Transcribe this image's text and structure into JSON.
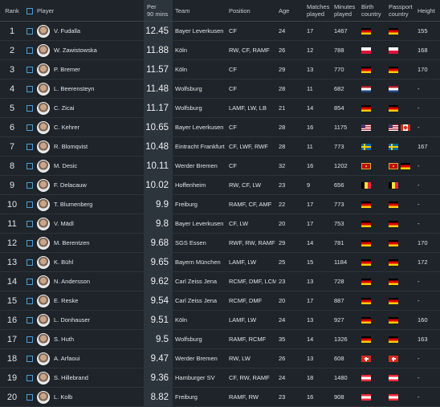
{
  "headers": {
    "rank": "Rank",
    "player": "Player",
    "per90_line1": "Per",
    "per90_line2": "90 mins",
    "team": "Team",
    "position": "Position",
    "age": "Age",
    "matches_line1": "Matches",
    "matches_line2": "played",
    "minutes_line1": "Minutes",
    "minutes_line2": "played",
    "birth_line1": "Birth",
    "birth_line2": "country",
    "passport_line1": "Passport",
    "passport_line2": "country",
    "height": "Height"
  },
  "rows": [
    {
      "rank": "1",
      "player": "V. Fudalla",
      "per90": "12.45",
      "team": "Bayer Leverkusen",
      "position": "CF",
      "age": "24",
      "matches": "17",
      "minutes": "1467",
      "birth": [
        "de"
      ],
      "passport": [
        "de"
      ],
      "height": "155"
    },
    {
      "rank": "2",
      "player": "W. Zawistowska",
      "per90": "11.88",
      "team": "Köln",
      "position": "RW, CF, RAMF",
      "age": "26",
      "matches": "12",
      "minutes": "788",
      "birth": [
        "pl"
      ],
      "passport": [
        "pl"
      ],
      "height": "168"
    },
    {
      "rank": "3",
      "player": "P. Bremer",
      "per90": "11.57",
      "team": "Köln",
      "position": "CF",
      "age": "29",
      "matches": "13",
      "minutes": "770",
      "birth": [
        "de"
      ],
      "passport": [
        "de"
      ],
      "height": "170"
    },
    {
      "rank": "4",
      "player": "L. Beerensteyn",
      "per90": "11.48",
      "team": "Wolfsburg",
      "position": "CF",
      "age": "28",
      "matches": "11",
      "minutes": "682",
      "birth": [
        "nl"
      ],
      "passport": [
        "nl"
      ],
      "height": "-"
    },
    {
      "rank": "5",
      "player": "C. Zicai",
      "per90": "11.17",
      "team": "Wolfsburg",
      "position": "LAMF, LW, LB",
      "age": "21",
      "matches": "14",
      "minutes": "854",
      "birth": [
        "de"
      ],
      "passport": [
        "de"
      ],
      "height": "-"
    },
    {
      "rank": "6",
      "player": "C. Kehrer",
      "per90": "10.65",
      "team": "Bayer Leverkusen",
      "position": "CF",
      "age": "28",
      "matches": "16",
      "minutes": "1175",
      "birth": [
        "us"
      ],
      "passport": [
        "us",
        "ca"
      ],
      "height": "-"
    },
    {
      "rank": "7",
      "player": "R. Blomqvist",
      "per90": "10.48",
      "team": "Eintracht Frankfurt",
      "position": "CF, LWF, RWF",
      "age": "28",
      "matches": "11",
      "minutes": "773",
      "birth": [
        "se"
      ],
      "passport": [
        "se"
      ],
      "height": "167"
    },
    {
      "rank": "8",
      "player": "M. Desic",
      "per90": "10.11",
      "team": "Werder Bremen",
      "position": "CF",
      "age": "32",
      "matches": "16",
      "minutes": "1202",
      "birth": [
        "me"
      ],
      "passport": [
        "me",
        "de"
      ],
      "height": "-"
    },
    {
      "rank": "9",
      "player": "F. Delacauw",
      "per90": "10.02",
      "team": "Hoffenheim",
      "position": "RW, CF, LW",
      "age": "23",
      "matches": "9",
      "minutes": "656",
      "birth": [
        "be"
      ],
      "passport": [
        "be"
      ],
      "height": "-"
    },
    {
      "rank": "10",
      "player": "T. Blumenberg",
      "per90": "9.9",
      "team": "Freiburg",
      "position": "RAMF, CF, AMF",
      "age": "22",
      "matches": "17",
      "minutes": "773",
      "birth": [
        "de"
      ],
      "passport": [
        "de"
      ],
      "height": "-"
    },
    {
      "rank": "11",
      "player": "V. Mädl",
      "per90": "9.8",
      "team": "Bayer Leverkusen",
      "position": "CF, LW",
      "age": "20",
      "matches": "17",
      "minutes": "753",
      "birth": [
        "de"
      ],
      "passport": [
        "de"
      ],
      "height": "-"
    },
    {
      "rank": "12",
      "player": "M. Berentzen",
      "per90": "9.68",
      "team": "SGS Essen",
      "position": "RWF, RW, RAMF",
      "age": "29",
      "matches": "14",
      "minutes": "781",
      "birth": [
        "de"
      ],
      "passport": [
        "de"
      ],
      "height": "170"
    },
    {
      "rank": "13",
      "player": "K. Bühl",
      "per90": "9.65",
      "team": "Bayern München",
      "position": "LAMF, LW",
      "age": "25",
      "matches": "15",
      "minutes": "1184",
      "birth": [
        "de"
      ],
      "passport": [
        "de"
      ],
      "height": "172"
    },
    {
      "rank": "14",
      "player": "N. Andersson",
      "per90": "9.62",
      "team": "Carl Zeiss Jena",
      "position": "RCMF, DMF, LCMF",
      "age": "23",
      "matches": "13",
      "minutes": "728",
      "birth": [
        "de"
      ],
      "passport": [
        "de"
      ],
      "height": "-"
    },
    {
      "rank": "15",
      "player": "E. Reske",
      "per90": "9.54",
      "team": "Carl Zeiss Jena",
      "position": "RCMF, DMF",
      "age": "20",
      "matches": "17",
      "minutes": "887",
      "birth": [
        "de"
      ],
      "passport": [
        "de"
      ],
      "height": "-"
    },
    {
      "rank": "16",
      "player": "L. Donhauser",
      "per90": "9.51",
      "team": "Köln",
      "position": "LAMF, LW",
      "age": "24",
      "matches": "13",
      "minutes": "927",
      "birth": [
        "de"
      ],
      "passport": [
        "de"
      ],
      "height": "160"
    },
    {
      "rank": "17",
      "player": "S. Huth",
      "per90": "9.5",
      "team": "Wolfsburg",
      "position": "RAMF, RCMF",
      "age": "35",
      "matches": "14",
      "minutes": "1326",
      "birth": [
        "de"
      ],
      "passport": [
        "de"
      ],
      "height": "163"
    },
    {
      "rank": "18",
      "player": "A. Arfaoui",
      "per90": "9.47",
      "team": "Werder Bremen",
      "position": "RW, LW",
      "age": "26",
      "matches": "13",
      "minutes": "608",
      "birth": [
        "ch"
      ],
      "passport": [
        "ch"
      ],
      "height": "-"
    },
    {
      "rank": "19",
      "player": "S. Hillebrand",
      "per90": "9.36",
      "team": "Hamburger SV",
      "position": "CF, RW, RAMF",
      "age": "24",
      "matches": "18",
      "minutes": "1480",
      "birth": [
        "at"
      ],
      "passport": [
        "at"
      ],
      "height": "-"
    },
    {
      "rank": "20",
      "player": "L. Kolb",
      "per90": "8.82",
      "team": "Freiburg",
      "position": "RAMF, RW",
      "age": "23",
      "matches": "16",
      "minutes": "908",
      "birth": [
        "at"
      ],
      "passport": [
        "at"
      ],
      "height": "-"
    }
  ]
}
